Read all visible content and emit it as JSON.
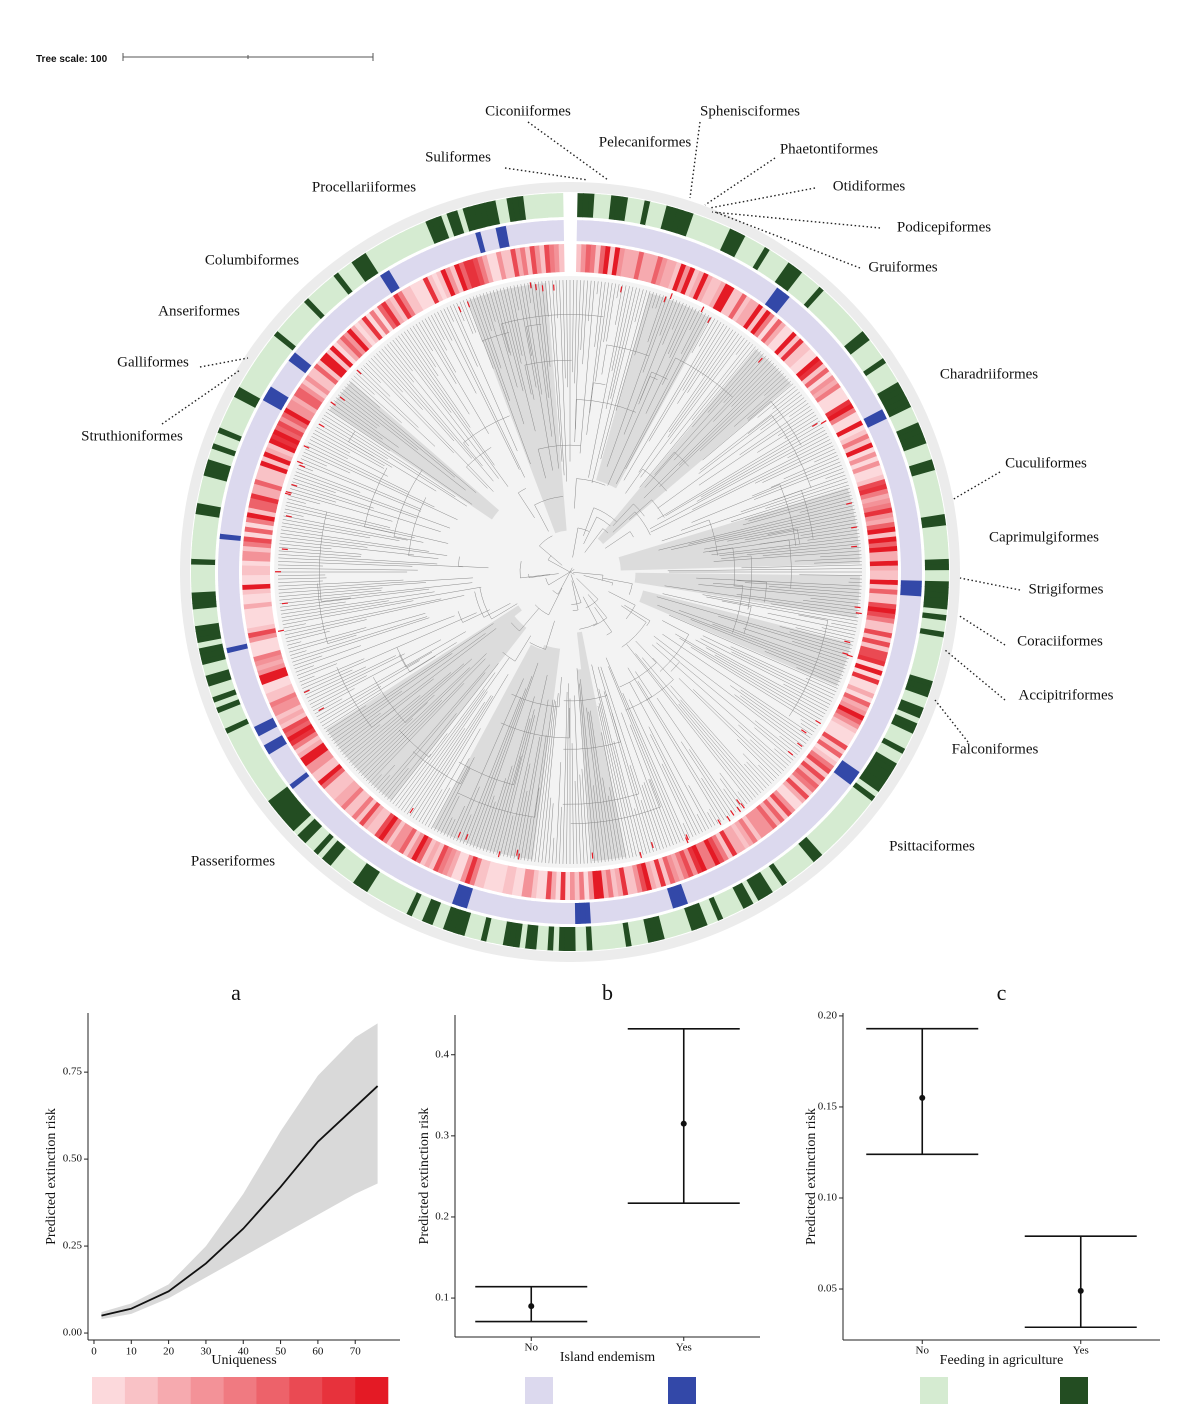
{
  "tree": {
    "scale_label": "Tree scale: 100",
    "orders": [
      "Suliformes",
      "Ciconiiformes",
      "Pelecaniformes",
      "Sphenisciformes",
      "Phaetontiformes",
      "Otidiformes",
      "Podicepiformes",
      "Gruiformes",
      "Charadriiformes",
      "Cuculiformes",
      "Caprimulgiformes",
      "Strigiformes",
      "Coraciiformes",
      "Accipitriformes",
      "Falconiformes",
      "Psittaciformes",
      "Passeriformes",
      "Struthioniformes",
      "Galliformes",
      "Anseriformes",
      "Columbiformes",
      "Procellariiformes"
    ]
  },
  "chart_data": [
    {
      "type": "line",
      "title": "a",
      "x_label": "Uniqueness",
      "y_label": "Predicted extinction risk",
      "x": [
        2,
        10,
        20,
        30,
        40,
        50,
        60,
        70,
        76
      ],
      "series": [
        {
          "color": "#111111",
          "band_color": "#d9d9d9",
          "values": [
            0.05,
            0.07,
            0.12,
            0.2,
            0.3,
            0.42,
            0.55,
            0.65,
            0.71
          ],
          "lower": [
            0.04,
            0.055,
            0.1,
            0.16,
            0.22,
            0.28,
            0.34,
            0.4,
            0.43
          ],
          "upper": [
            0.06,
            0.085,
            0.14,
            0.25,
            0.4,
            0.58,
            0.74,
            0.85,
            0.89
          ]
        }
      ],
      "xlim": [
        -1.6,
        82
      ],
      "xticks": [
        0,
        10,
        20,
        30,
        40,
        50,
        60,
        70
      ],
      "ylim": [
        -0.02,
        0.92
      ],
      "yticks": [
        {
          "value": 0,
          "label": "0.00"
        },
        0.25,
        {
          "value": 0.5,
          "label": "0.50"
        },
        0.75
      ],
      "legend_colors": [
        "#fcd9dc",
        "#f9c2c6",
        "#f6aaaf",
        "#f39298",
        "#f07a81",
        "#ed626a",
        "#ea4a53",
        "#e7323c",
        "#e41a25"
      ]
    },
    {
      "type": "errorbar",
      "title": "b",
      "x_label": "Island endemism",
      "y_label": "Predicted extinction risk",
      "categories": [
        "No",
        "Yes"
      ],
      "values": [
        0.09,
        0.315
      ],
      "lower": [
        0.071,
        0.217
      ],
      "upper": [
        0.114,
        0.432
      ],
      "ylim": [
        0.052,
        0.449
      ],
      "yticks": [
        0.1,
        0.2,
        0.3,
        0.4
      ],
      "color": "#111111",
      "legend_colors": [
        "#dcd9ee",
        "#3348a8"
      ]
    },
    {
      "type": "errorbar",
      "title": "c",
      "x_label": "Feeding in agriculture",
      "y_label": "Predicted extinction risk",
      "categories": [
        "No",
        "Yes"
      ],
      "values": [
        0.155,
        0.049
      ],
      "lower": [
        0.124,
        0.029
      ],
      "upper": [
        0.193,
        0.079
      ],
      "ylim": [
        0.022,
        0.2016
      ],
      "yticks": [
        0.05,
        {
          "value": 0.1,
          "label": "0.10"
        },
        0.15,
        {
          "value": 0.2,
          "label": "0.20"
        }
      ],
      "color": "#111111",
      "legend_colors": [
        "#d5ebd1",
        "#234d22"
      ]
    }
  ]
}
